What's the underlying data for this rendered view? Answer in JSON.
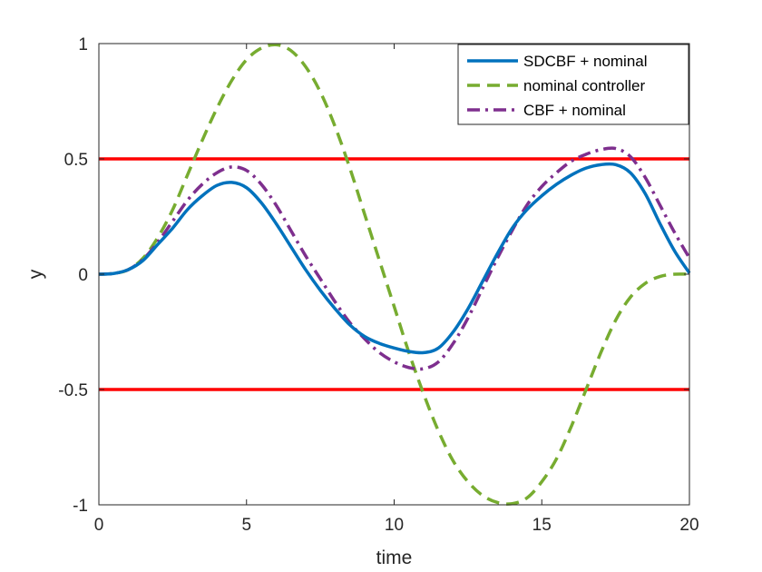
{
  "chart_data": {
    "type": "line",
    "xlabel": "time",
    "ylabel": "y",
    "xlim": [
      0,
      20
    ],
    "ylim": [
      -1,
      1
    ],
    "xticks": [
      0,
      5,
      10,
      15,
      20
    ],
    "xtick_labels": [
      "0",
      "5",
      "10",
      "15",
      "20"
    ],
    "yticks": [
      -1,
      -0.5,
      0,
      0.5,
      1
    ],
    "ytick_labels": [
      "-1",
      "-0.5",
      "0",
      "0.5",
      "1"
    ],
    "grid": false,
    "legend_position": "top-right",
    "reference_lines": [
      {
        "y": 0.5,
        "color": "#ff0000"
      },
      {
        "y": -0.5,
        "color": "#ff0000"
      }
    ],
    "series": [
      {
        "name": "SDCBF + nominal",
        "color": "#0072bd",
        "style": "solid",
        "x": [
          0,
          0.5,
          1,
          1.5,
          2,
          2.5,
          3,
          3.5,
          4,
          4.5,
          5,
          5.5,
          6,
          6.5,
          7,
          7.5,
          8,
          8.5,
          9,
          9.5,
          10,
          10.5,
          11,
          11.5,
          12,
          12.5,
          13,
          13.5,
          14,
          14.5,
          15,
          15.5,
          16,
          16.5,
          17,
          17.5,
          18,
          18.5,
          19,
          19.5,
          20
        ],
        "y": [
          0,
          0.003,
          0.02,
          0.06,
          0.13,
          0.2,
          0.28,
          0.34,
          0.385,
          0.398,
          0.375,
          0.31,
          0.22,
          0.12,
          0.02,
          -0.07,
          -0.15,
          -0.22,
          -0.27,
          -0.3,
          -0.32,
          -0.335,
          -0.34,
          -0.32,
          -0.25,
          -0.15,
          -0.03,
          0.09,
          0.2,
          0.28,
          0.34,
          0.39,
          0.43,
          0.46,
          0.475,
          0.475,
          0.44,
          0.35,
          0.22,
          0.1,
          0.005
        ]
      },
      {
        "name": "nominal controller",
        "color": "#77ac30",
        "style": "dashed",
        "x": [
          0,
          0.5,
          1,
          1.5,
          2,
          2.5,
          3,
          3.5,
          4,
          4.5,
          5,
          5.5,
          6,
          6.5,
          7,
          7.5,
          8,
          8.5,
          9,
          9.5,
          10,
          10.5,
          11,
          11.5,
          12,
          12.5,
          13,
          13.5,
          14,
          14.5,
          15,
          15.5,
          16,
          16.5,
          17,
          17.5,
          18,
          18.5,
          19,
          19.5,
          20
        ],
        "y": [
          0,
          0.003,
          0.02,
          0.07,
          0.16,
          0.28,
          0.43,
          0.58,
          0.72,
          0.84,
          0.93,
          0.98,
          0.995,
          0.97,
          0.9,
          0.79,
          0.64,
          0.46,
          0.26,
          0.06,
          -0.14,
          -0.34,
          -0.52,
          -0.68,
          -0.81,
          -0.9,
          -0.96,
          -0.99,
          -0.995,
          -0.97,
          -0.9,
          -0.8,
          -0.66,
          -0.5,
          -0.34,
          -0.2,
          -0.1,
          -0.04,
          -0.01,
          0,
          0
        ]
      },
      {
        "name": "CBF + nominal",
        "color": "#7e2f8e",
        "style": "dashdot",
        "x": [
          0,
          0.5,
          1,
          1.5,
          2,
          2.5,
          3,
          3.5,
          4,
          4.5,
          5,
          5.5,
          6,
          6.5,
          7,
          7.5,
          8,
          8.5,
          9,
          9.5,
          10,
          10.5,
          11,
          11.5,
          12,
          12.5,
          13,
          13.5,
          14,
          14.5,
          15,
          15.5,
          16,
          16.5,
          17,
          17.5,
          18,
          18.5,
          19,
          19.5,
          20
        ],
        "y": [
          0,
          0.003,
          0.02,
          0.065,
          0.14,
          0.23,
          0.32,
          0.39,
          0.44,
          0.465,
          0.45,
          0.39,
          0.3,
          0.19,
          0.08,
          -0.02,
          -0.12,
          -0.21,
          -0.28,
          -0.34,
          -0.38,
          -0.405,
          -0.41,
          -0.38,
          -0.3,
          -0.19,
          -0.06,
          0.07,
          0.19,
          0.3,
          0.38,
          0.44,
          0.49,
          0.52,
          0.54,
          0.545,
          0.51,
          0.42,
          0.3,
          0.18,
          0.07
        ]
      }
    ]
  }
}
